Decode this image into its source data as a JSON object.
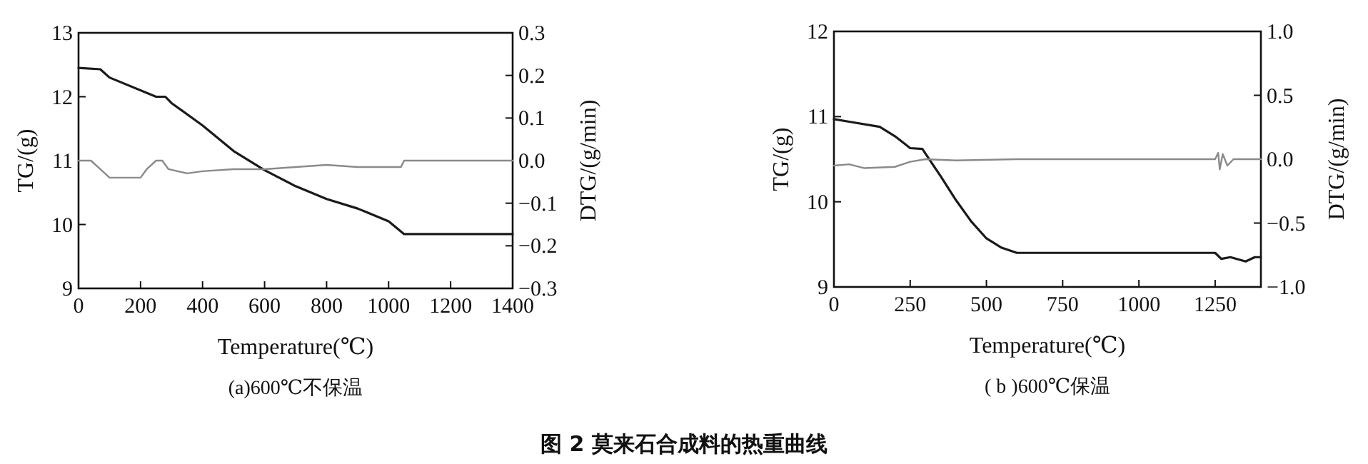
{
  "chart_data": [
    {
      "type": "line",
      "title": "(a)600℃不保温",
      "xlabel": "Temperature(℃)",
      "ylabel": "TG/(g)",
      "y2label": "DTG/(g/min)",
      "xlim": [
        0,
        1400
      ],
      "xticks": [
        0,
        200,
        400,
        600,
        800,
        1000,
        1200,
        1400
      ],
      "ylim": [
        9,
        13
      ],
      "yticks": [
        9,
        10,
        11,
        12,
        13
      ],
      "y2lim": [
        -0.3,
        0.3
      ],
      "y2ticks": [
        {
          "value": -0.3,
          "label": "−0.3"
        },
        {
          "value": -0.2,
          "label": "−0.2"
        },
        {
          "value": -0.1,
          "label": "−0.1"
        },
        {
          "value": 0,
          "label": "0.0"
        },
        {
          "value": 0.1,
          "label": "0.1"
        },
        {
          "value": 0.2,
          "label": "0.2"
        },
        {
          "value": 0.3,
          "label": "0.3"
        }
      ],
      "annotations": [
        "图 2 莫来石合成料的热重曲线"
      ],
      "series": [
        {
          "color": "#1a1a1a",
          "x": [
            0,
            70,
            100,
            250,
            280,
            300,
            400,
            500,
            600,
            700,
            800,
            900,
            1000,
            1050,
            1100,
            1380,
            1400
          ],
          "values": [
            12.45,
            12.43,
            12.3,
            12.0,
            12.0,
            11.9,
            11.55,
            11.15,
            10.85,
            10.6,
            10.4,
            10.25,
            10.05,
            9.85,
            9.85,
            9.85,
            9.85
          ]
        },
        {
          "color": "#8a8a8a",
          "axis": "y2",
          "x": [
            0,
            40,
            70,
            100,
            200,
            220,
            250,
            270,
            290,
            350,
            400,
            500,
            600,
            700,
            800,
            900,
            1040,
            1050,
            1400
          ],
          "values": [
            0.0,
            0.0,
            -0.02,
            -0.04,
            -0.04,
            -0.02,
            0.0,
            0.0,
            -0.02,
            -0.03,
            -0.025,
            -0.02,
            -0.02,
            -0.015,
            -0.01,
            -0.015,
            -0.015,
            0.0,
            0.0
          ]
        }
      ]
    },
    {
      "type": "line",
      "title": "( b )600℃保温",
      "xlabel": "Temperature(℃)",
      "ylabel": "TG/(g)",
      "y2label": "DTG/(g/min)",
      "xlim": [
        0,
        1400
      ],
      "xticks": [
        0,
        250,
        500,
        750,
        1000,
        1250
      ],
      "ylim": [
        9,
        12
      ],
      "yticks": [
        9,
        10,
        11,
        12
      ],
      "y2lim": [
        -1,
        1
      ],
      "y2ticks": [
        {
          "value": -1,
          "label": "−1.0"
        },
        {
          "value": -0.5,
          "label": "−0.5"
        },
        {
          "value": 0,
          "label": "0.0"
        },
        {
          "value": 0.5,
          "label": "0.5"
        },
        {
          "value": 1,
          "label": "1.0"
        }
      ],
      "series": [
        {
          "color": "#1a1a1a",
          "x": [
            0,
            50,
            150,
            200,
            250,
            290,
            320,
            350,
            400,
            450,
            500,
            550,
            600,
            650,
            1250,
            1270,
            1300,
            1350,
            1380,
            1400
          ],
          "values": [
            10.97,
            10.94,
            10.88,
            10.77,
            10.63,
            10.62,
            10.46,
            10.3,
            10.02,
            9.77,
            9.57,
            9.46,
            9.4,
            9.4,
            9.4,
            9.33,
            9.35,
            9.3,
            9.35,
            9.35
          ]
        },
        {
          "color": "#8a8a8a",
          "axis": "y2",
          "x": [
            0,
            50,
            100,
            200,
            250,
            300,
            400,
            600,
            1250,
            1260,
            1265,
            1275,
            1290,
            1310,
            1400
          ],
          "values": [
            -0.05,
            -0.04,
            -0.07,
            -0.06,
            -0.02,
            0.0,
            -0.01,
            0.0,
            0.0,
            0.05,
            -0.08,
            0.04,
            -0.05,
            0.0,
            0.0
          ]
        }
      ]
    }
  ]
}
